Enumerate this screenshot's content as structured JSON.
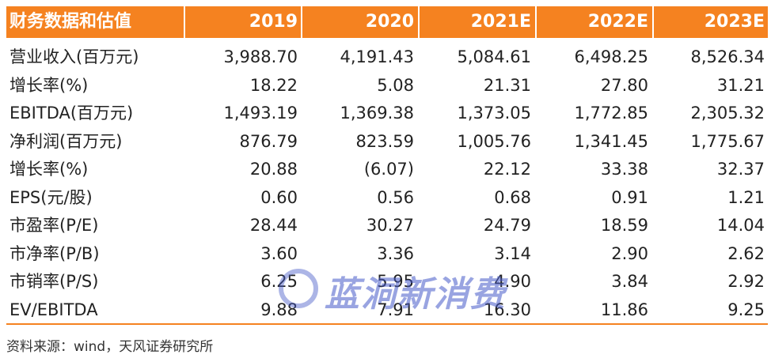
{
  "table": {
    "header": [
      "财务数据和估值",
      "2019",
      "2020",
      "2021E",
      "2022E",
      "2023E"
    ],
    "rows": [
      [
        "营业收入(百万元)",
        "3,988.70",
        "4,191.43",
        "5,084.61",
        "6,498.25",
        "8,526.34"
      ],
      [
        "增长率(%)",
        "18.22",
        "5.08",
        "21.31",
        "27.80",
        "31.21"
      ],
      [
        "EBITDA(百万元)",
        "1,493.19",
        "1,369.38",
        "1,373.05",
        "1,772.85",
        "2,305.32"
      ],
      [
        "净利润(百万元)",
        "876.79",
        "823.59",
        "1,005.76",
        "1,341.45",
        "1,775.67"
      ],
      [
        "增长率(%)",
        "20.88",
        "(6.07)",
        "22.12",
        "33.38",
        "32.37"
      ],
      [
        "EPS(元/股)",
        "0.60",
        "0.56",
        "0.68",
        "0.91",
        "1.21"
      ],
      [
        "市盈率(P/E)",
        "28.44",
        "30.27",
        "24.79",
        "18.59",
        "14.04"
      ],
      [
        "市净率(P/B)",
        "3.60",
        "3.36",
        "3.14",
        "2.90",
        "2.62"
      ],
      [
        "市销率(P/S)",
        "6.25",
        "5.95",
        "4.90",
        "3.84",
        "2.92"
      ],
      [
        "EV/EBITDA",
        "9.88",
        "7.91",
        "16.30",
        "11.86",
        "9.25"
      ]
    ]
  },
  "source": "资料来源：wind，天风证券研究所",
  "watermark": "蓝洞新消费"
}
